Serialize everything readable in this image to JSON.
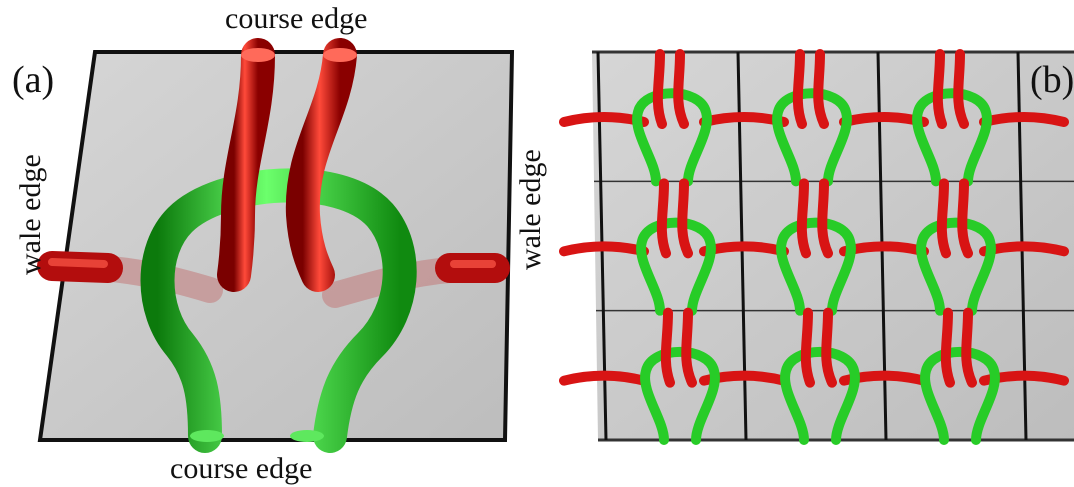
{
  "panel_a": {
    "label": "(a)",
    "top_edge_label": "course edge",
    "bottom_edge_label": "course edge",
    "left_edge_label": "wale edge",
    "right_edge_label": "wale edge"
  },
  "panel_b": {
    "label": "(b)",
    "grid_rows": 3,
    "grid_cols": 3
  },
  "colors": {
    "sheet": "#c9c9c9",
    "sheet_edge": "#111111",
    "yarn_red": "#d81414",
    "yarn_green": "#27cc27"
  }
}
